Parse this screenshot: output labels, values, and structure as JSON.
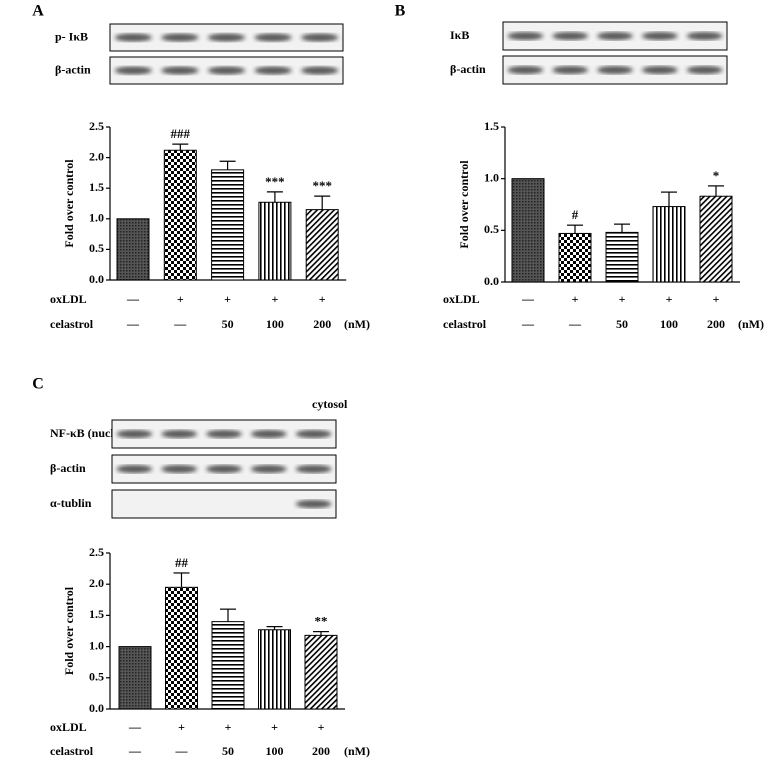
{
  "chart_data": [
    {
      "type": "bar",
      "panel": "A",
      "blot_labels": [
        "p- IκB",
        "β-actin"
      ],
      "ylabel": "Fold over control",
      "values": [
        1.0,
        2.12,
        1.8,
        1.27,
        1.15
      ],
      "errors": [
        null,
        0.1,
        0.14,
        0.17,
        0.22
      ],
      "annotations": [
        null,
        "###",
        null,
        "***",
        "***"
      ],
      "treatment_rows": [
        {
          "name": "oxLDL",
          "labels": [
            "—",
            "+",
            "+",
            "+",
            "+"
          ]
        },
        {
          "name": "celastrol",
          "labels": [
            "—",
            "—",
            "50",
            "100",
            "200"
          ]
        }
      ],
      "unit": "(nM)",
      "ylim": [
        0,
        2.5
      ],
      "yticks": [
        {
          "value": 0,
          "label": "0.0"
        },
        0.5,
        {
          "value": 1,
          "label": "1.0"
        },
        1.5,
        {
          "value": 2,
          "label": "2.0"
        },
        2.5
      ]
    },
    {
      "type": "bar",
      "panel": "B",
      "blot_labels": [
        "IκB",
        "β-actin"
      ],
      "ylabel": "Fold over control",
      "values": [
        1.0,
        0.47,
        0.48,
        0.73,
        0.83
      ],
      "errors": [
        null,
        0.08,
        0.08,
        0.14,
        0.1
      ],
      "annotations": [
        null,
        "#",
        null,
        null,
        "*"
      ],
      "treatment_rows": [
        {
          "name": "oxLDL",
          "labels": [
            "—",
            "+",
            "+",
            "+",
            "+"
          ]
        },
        {
          "name": "celastrol",
          "labels": [
            "—",
            "—",
            "50",
            "100",
            "200"
          ]
        }
      ],
      "unit": "(nM)",
      "ylim": [
        0,
        1.5
      ],
      "yticks": [
        {
          "value": 0,
          "label": "0.0"
        },
        0.5,
        {
          "value": 1,
          "label": "1.0"
        },
        1.5
      ]
    },
    {
      "type": "bar",
      "panel": "C",
      "blot_labels": [
        "NF-κB (nucleus)",
        "β-actin",
        "α-tublin"
      ],
      "blot_note": "cytosol",
      "ylabel": "Fold over control",
      "values": [
        1.0,
        1.95,
        1.4,
        1.27,
        1.18
      ],
      "errors": [
        null,
        0.23,
        0.2,
        0.05,
        0.06
      ],
      "annotations": [
        null,
        "##",
        null,
        null,
        "**"
      ],
      "treatment_rows": [
        {
          "name": "oxLDL",
          "labels": [
            "—",
            "+",
            "+",
            "+",
            "+"
          ]
        },
        {
          "name": "celastrol",
          "labels": [
            "—",
            "—",
            "50",
            "100",
            "200"
          ]
        }
      ],
      "unit": "(nM)",
      "ylim": [
        0,
        2.5
      ],
      "yticks": [
        {
          "value": 0,
          "label": "0.0"
        },
        0.5,
        {
          "value": 1,
          "label": "1.0"
        },
        1.5,
        {
          "value": 2,
          "label": "2.0"
        },
        2.5
      ]
    }
  ]
}
